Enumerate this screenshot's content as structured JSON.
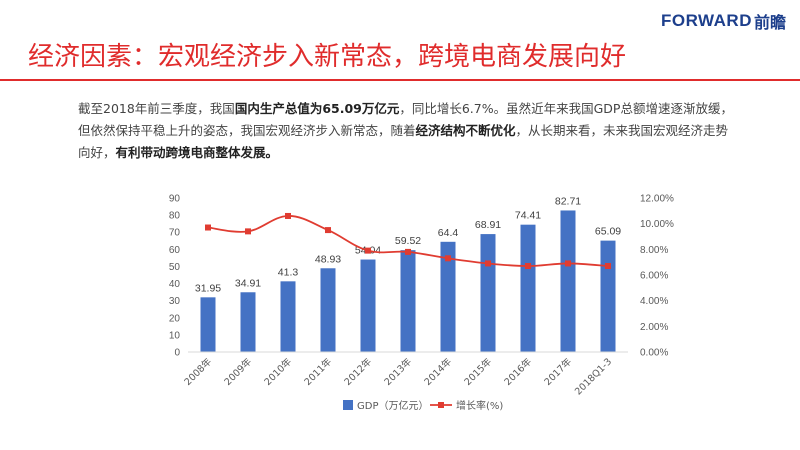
{
  "logo": {
    "text": "FORWARD",
    "cn": "前瞻"
  },
  "title": "经济因素：宏观经济步入新常态，跨境电商发展向好",
  "paragraph": {
    "p1": "截至2018年前三季度，我国",
    "b1": "国内生产总值为65.09万亿元",
    "p2": "，同比增长6.7%。虽然近年来我国GDP总额增速逐渐放缓，但依然保持平稳上升的姿态，我国宏观经济步入新常态，随着",
    "b2": "经济结构不断优化",
    "p3": "，从长期来看，未来我国宏观经济走势向好，",
    "b3": "有利带动跨境电商整体发展。"
  },
  "colors": {
    "bar": "#4472c4",
    "line": "#e03c31",
    "accent": "#e02c2c",
    "logo": "#1d3f8c"
  },
  "chart_data": {
    "type": "bar",
    "categories": [
      "2008年",
      "2009年",
      "2010年",
      "2011年",
      "2012年",
      "2013年",
      "2014年",
      "2015年",
      "2016年",
      "2017年",
      "2018Q1-3"
    ],
    "series": [
      {
        "name": "GDP（万亿元）",
        "type": "bar",
        "axis": "left",
        "values": [
          31.95,
          34.91,
          41.3,
          48.93,
          54.04,
          59.52,
          64.4,
          68.91,
          74.41,
          82.71,
          65.09
        ],
        "labels": [
          "31.95",
          "34.91",
          "41.3",
          "48.93",
          "54.04",
          "59.52",
          "64.4",
          "68.91",
          "74.41",
          "82.71",
          "65.09"
        ]
      },
      {
        "name": "增长率(%)",
        "type": "line",
        "axis": "right",
        "values": [
          9.7,
          9.4,
          10.6,
          9.5,
          7.9,
          7.8,
          7.3,
          6.9,
          6.7,
          6.9,
          6.7
        ]
      }
    ],
    "ylim_left": [
      0,
      90
    ],
    "yticks_left": [
      "0",
      "10",
      "20",
      "30",
      "40",
      "50",
      "60",
      "70",
      "80",
      "90"
    ],
    "ylim_right": [
      0,
      12
    ],
    "yticks_right": [
      "0.00%",
      "2.00%",
      "4.00%",
      "6.00%",
      "8.00%",
      "10.00%",
      "12.00%"
    ],
    "legend_position": "bottom",
    "grid": false
  }
}
